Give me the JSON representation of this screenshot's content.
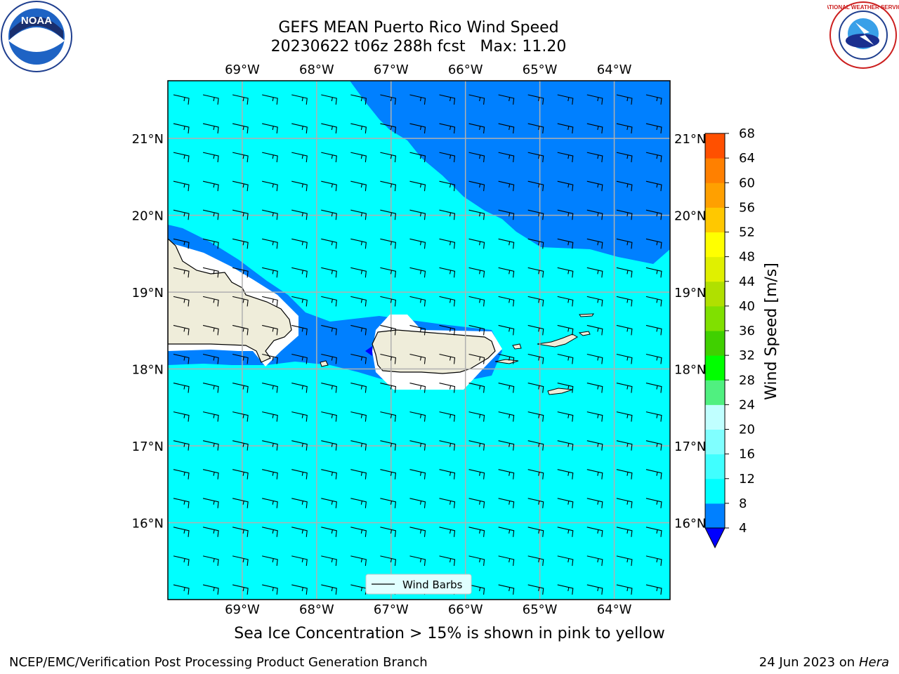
{
  "title_line1": "GEFS MEAN Puerto Rico Wind Speed",
  "title_line2": "20230622 t06z 288h fcst   Max: 11.20",
  "logos": {
    "left": "noaa-logo",
    "left_text": "NOAA",
    "right": "national-weather-service-logo",
    "right_text": "NATIONAL WEATHER SERVICE"
  },
  "map": {
    "lon_range": [
      -70.0,
      -63.25
    ],
    "lat_range": [
      15.0,
      21.75
    ],
    "lon_ticks": [
      "69°W",
      "68°W",
      "67°W",
      "66°W",
      "65°W",
      "64°W"
    ],
    "lon_tick_values": [
      -69,
      -68,
      -67,
      -66,
      -65,
      -64
    ],
    "lat_ticks": [
      "21°N",
      "20°N",
      "19°N",
      "18°N",
      "17°N",
      "16°N"
    ],
    "lat_tick_values": [
      21,
      20,
      19,
      18,
      17,
      16
    ],
    "gridlines": true,
    "legend_label": "Wind Barbs",
    "legend_position": "lower-center",
    "background_color": "#00ffff",
    "higher_band_color": "#0080ff",
    "land_color": "#efedda",
    "grid_color": "#b0b0b0"
  },
  "colorbar": {
    "label": "Wind Speed [m/s]",
    "ticks": [
      "4",
      "8",
      "12",
      "16",
      "20",
      "24",
      "28",
      "32",
      "36",
      "40",
      "44",
      "48",
      "52",
      "56",
      "60",
      "64",
      "68"
    ],
    "colors": [
      "#0080ff",
      "#00ffff",
      "#40ffff",
      "#80ffff",
      "#c0ffff",
      "#50f080",
      "#00ff00",
      "#40d000",
      "#80e000",
      "#b0e000",
      "#e0f000",
      "#ffff00",
      "#ffc800",
      "#ffa000",
      "#ff8000",
      "#ff5000",
      "#ff2000",
      "#ff0000"
    ],
    "extend_color": "#0000ff"
  },
  "footer": {
    "caption": "Sea Ice Concentration > 15% is shown in pink to yellow",
    "credit": "NCEP/EMC/Verification Post Processing Product Generation Branch",
    "date": "24 Jun 2023 on",
    "host": "Hera"
  }
}
